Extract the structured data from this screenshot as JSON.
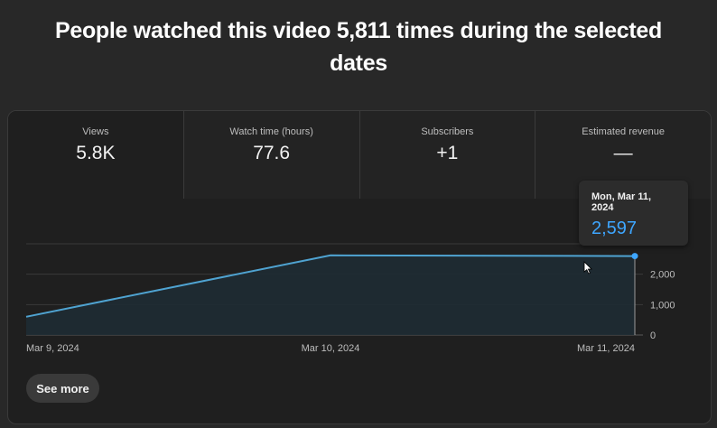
{
  "headline": "People watched this video 5,811 times during the selected dates",
  "tabs": [
    {
      "label": "Views",
      "value": "5.8K"
    },
    {
      "label": "Watch time (hours)",
      "value": "77.6"
    },
    {
      "label": "Subscribers",
      "value": "+1"
    },
    {
      "label": "Estimated revenue",
      "value": "—"
    }
  ],
  "tooltip": {
    "date": "Mon, Mar 11, 2024",
    "value": "2,597"
  },
  "see_more_label": "See more",
  "colors": {
    "accent": "#3ea6ff",
    "line": "#4fa3d1",
    "fill": "#1e2b33"
  },
  "chart_data": {
    "type": "area",
    "x": [
      "Mar 9, 2024",
      "Mar 10, 2024",
      "Mar 11, 2024"
    ],
    "series": [
      {
        "values": [
          600,
          2620,
          2597
        ]
      }
    ],
    "y_ticks": [
      "0",
      "1,000",
      "2,000"
    ],
    "ylim": [
      0,
      3000
    ],
    "grid": true,
    "y_axis_position": "right"
  }
}
